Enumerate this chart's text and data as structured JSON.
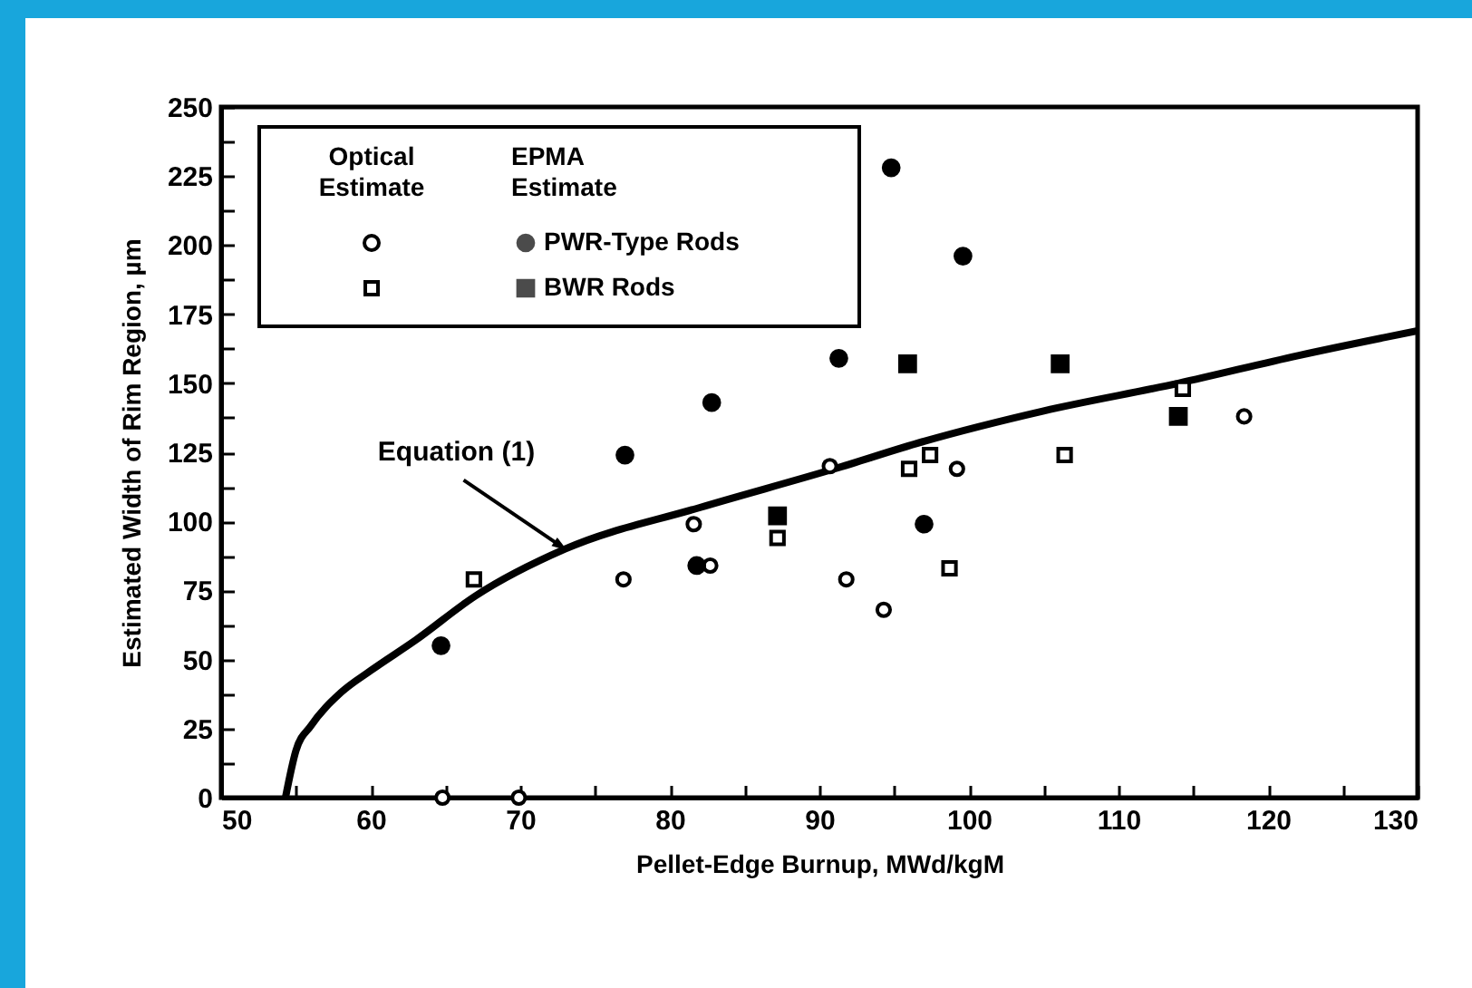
{
  "chart_data": {
    "type": "scatter",
    "xlabel": "Pellet-Edge Burnup, MWd/kgM",
    "ylabel": "Estimated Width of Rim Region, µm",
    "xlim": [
      50,
      130
    ],
    "xticks": [
      50,
      {
        "value": 55,
        "label": null
      },
      60,
      {
        "value": 65,
        "label": null
      },
      70,
      {
        "value": 75,
        "label": null
      },
      80,
      {
        "value": 85,
        "label": null
      },
      90,
      {
        "value": 95,
        "label": null
      },
      100,
      {
        "value": 105,
        "label": null
      },
      110,
      {
        "value": 115,
        "label": null
      },
      120,
      {
        "value": 125,
        "label": null
      },
      130
    ],
    "ylim": [
      0,
      250
    ],
    "yticks": [
      0,
      {
        "value": 12.5,
        "label": null
      },
      25,
      {
        "value": 37.5,
        "label": null
      },
      50,
      {
        "value": 62.5,
        "label": null
      },
      75,
      {
        "value": 87.5,
        "label": null
      },
      100,
      {
        "value": 112.5,
        "label": null
      },
      125,
      {
        "value": 137.5,
        "label": null
      },
      150,
      {
        "value": 162.5,
        "label": null
      },
      175,
      {
        "value": 187.5,
        "label": null
      },
      200,
      {
        "value": 212.5,
        "label": null
      },
      225,
      {
        "value": 237.5,
        "label": null
      },
      250
    ],
    "legend": "top left",
    "annotations": [
      "Optical Estimate",
      "EPMA Estimate",
      {
        "text": "Equation (1)",
        "x": 73,
        "y": 90
      }
    ],
    "series": [
      {
        "type": "line",
        "color": "#000000",
        "x": [
          54.3,
          55,
          56,
          58,
          60,
          63,
          67,
          73,
          82,
          91,
          97,
          105,
          114,
          122,
          130
        ],
        "values": [
          0,
          17,
          26,
          38,
          46,
          57,
          73,
          90,
          105,
          119,
          129,
          140,
          150,
          160,
          169
        ]
      },
      {
        "marker": "circle",
        "color": "#000000",
        "x": [
          64.8,
          69.9,
          76.9,
          81.6,
          82.7,
          90.7,
          91.8,
          94.3,
          99.2,
          118.4
        ],
        "values": [
          0,
          0,
          79,
          99,
          84,
          120,
          79,
          68,
          119,
          138
        ]
      },
      {
        "marker": "square",
        "color": "#000000",
        "x": [
          66.9,
          87.2,
          96,
          97.4,
          98.7,
          106.4,
          114.3
        ],
        "values": [
          79,
          94,
          119,
          124,
          83,
          124,
          148
        ]
      },
      {
        "name": "PWR-Type Rods",
        "marker": "circle",
        "color": "#000000",
        "x": [
          64.7,
          77,
          81.8,
          82.8,
          91.3,
          94.8,
          97,
          99.6
        ],
        "values": [
          55,
          124,
          84,
          143,
          159,
          228,
          99,
          196
        ]
      },
      {
        "name": "BWR Rods",
        "marker": "square",
        "color": "#000000",
        "x": [
          87.2,
          95.9,
          106.1,
          114
        ],
        "values": [
          102,
          157,
          157,
          138
        ]
      }
    ]
  }
}
